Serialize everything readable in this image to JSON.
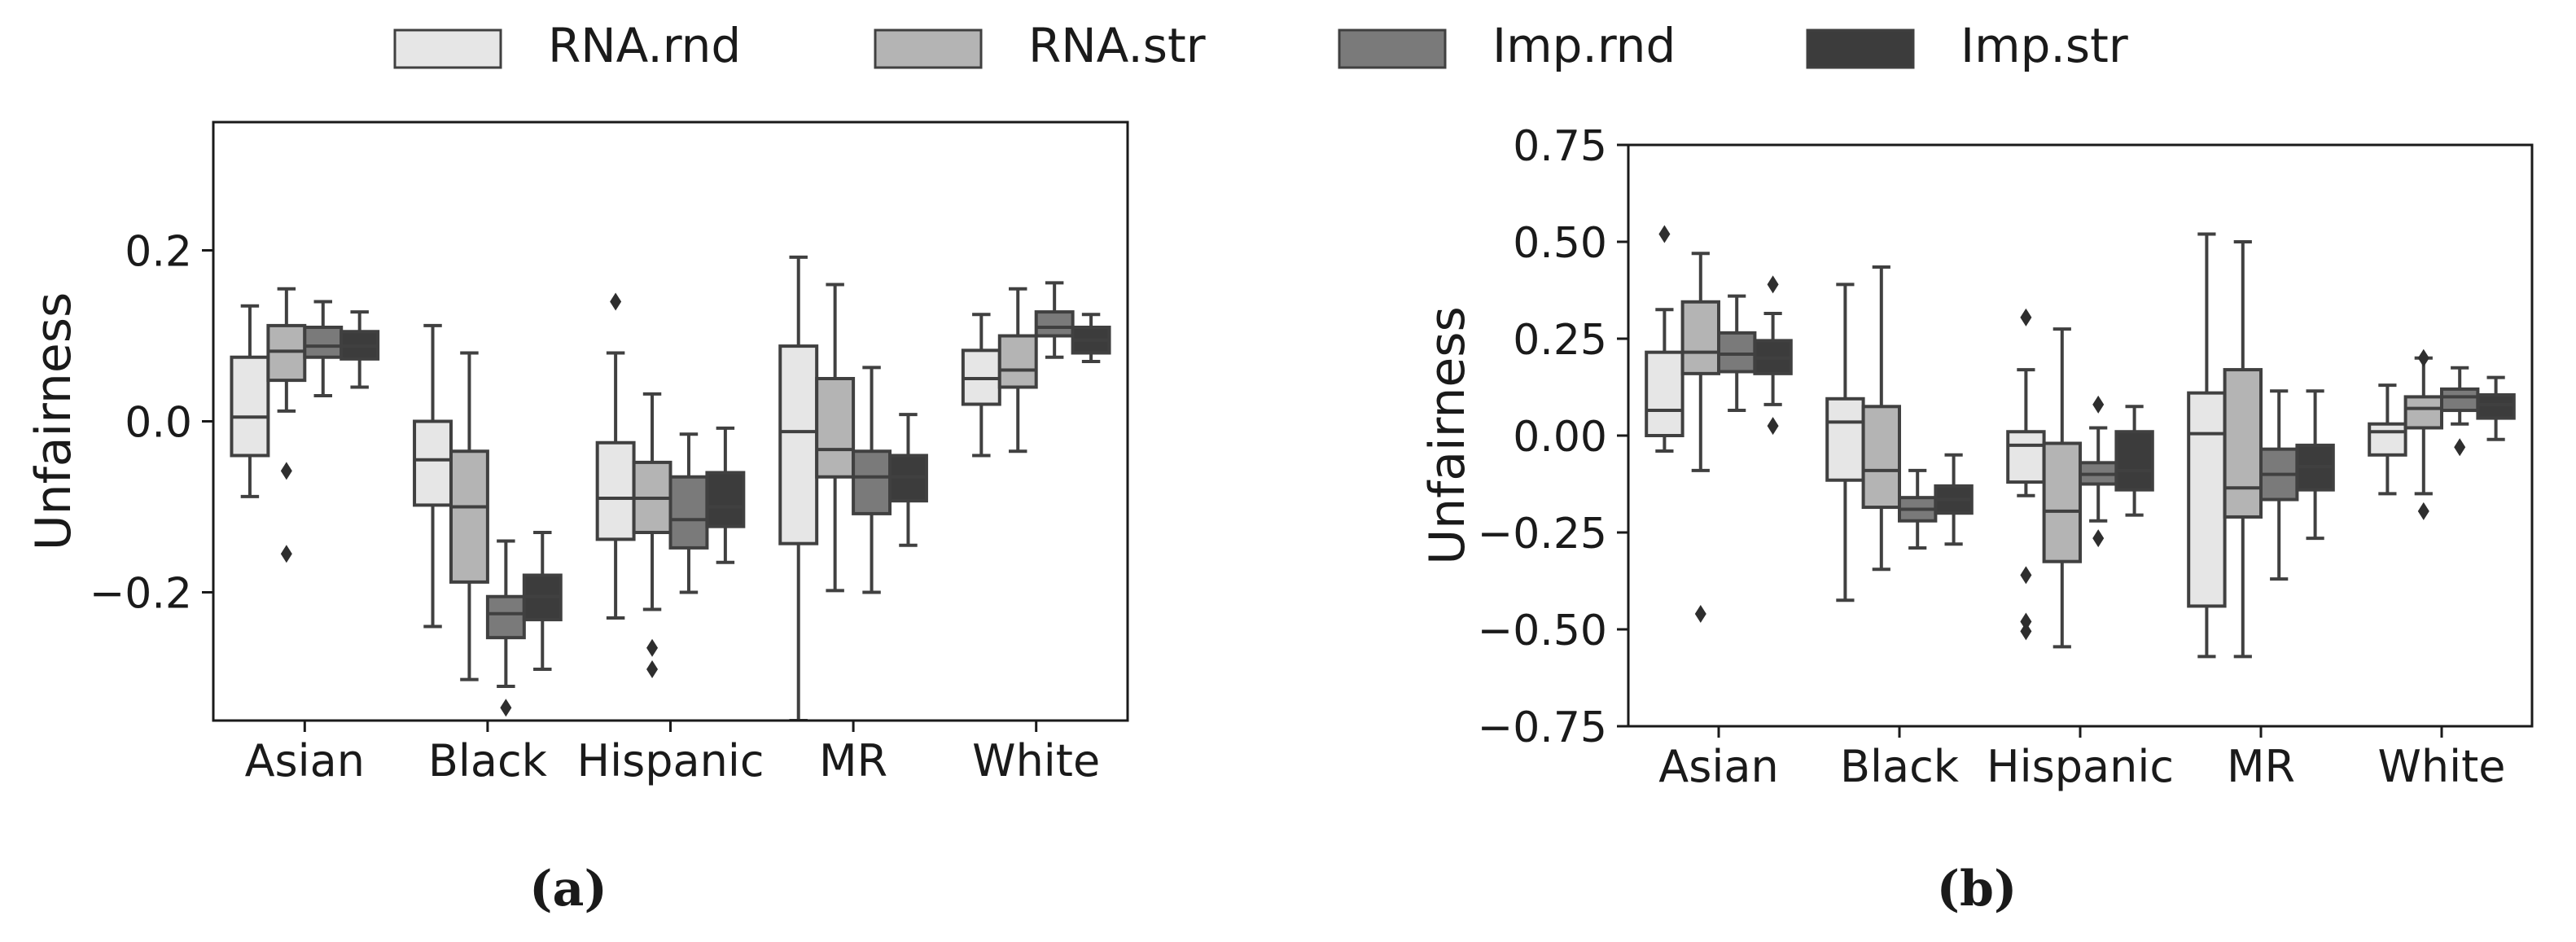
{
  "legend": {
    "placement": "top-center",
    "items": [
      {
        "label": "RNA.rnd",
        "color": "#e6e6e6"
      },
      {
        "label": "RNA.str",
        "color": "#b4b4b4"
      },
      {
        "label": "Imp.rnd",
        "color": "#7a7a7a"
      },
      {
        "label": "Imp.str",
        "color": "#3c3c3c"
      }
    ]
  },
  "edge_color": "#404040",
  "chart_data": [
    {
      "type": "box",
      "caption": "(a)",
      "ylabel": "Unfairness",
      "xlabel": "",
      "ylim": [
        -0.35,
        0.35
      ],
      "yticks": [
        0.2,
        0.0,
        -0.2
      ],
      "ytick_labels": [
        "0.2",
        "0.0",
        "−0.2"
      ],
      "categories": [
        "Asian",
        "Black",
        "Hispanic",
        "MR",
        "White"
      ],
      "series": [
        {
          "name": "RNA.rnd",
          "boxes": [
            {
              "q1": -0.04,
              "median": 0.005,
              "q3": 0.075,
              "wlo": -0.088,
              "whi": 0.135,
              "outliers": []
            },
            {
              "q1": -0.098,
              "median": -0.045,
              "q3": 0.0,
              "wlo": -0.24,
              "whi": 0.112,
              "outliers": []
            },
            {
              "q1": -0.138,
              "median": -0.09,
              "q3": -0.025,
              "wlo": -0.23,
              "whi": 0.08,
              "outliers": [
                0.14
              ]
            },
            {
              "q1": -0.143,
              "median": -0.012,
              "q3": 0.088,
              "wlo": -0.35,
              "whi": 0.192,
              "outliers": []
            },
            {
              "q1": 0.02,
              "median": 0.05,
              "q3": 0.083,
              "wlo": -0.04,
              "whi": 0.125,
              "outliers": []
            }
          ]
        },
        {
          "name": "RNA.str",
          "boxes": [
            {
              "q1": 0.048,
              "median": 0.082,
              "q3": 0.112,
              "wlo": 0.012,
              "whi": 0.155,
              "outliers": [
                -0.058,
                -0.155
              ]
            },
            {
              "q1": -0.188,
              "median": -0.1,
              "q3": -0.035,
              "wlo": -0.302,
              "whi": 0.08,
              "outliers": []
            },
            {
              "q1": -0.13,
              "median": -0.09,
              "q3": -0.048,
              "wlo": -0.22,
              "whi": 0.032,
              "outliers": [
                -0.265,
                -0.29
              ]
            },
            {
              "q1": -0.065,
              "median": -0.033,
              "q3": 0.05,
              "wlo": -0.198,
              "whi": 0.16,
              "outliers": []
            },
            {
              "q1": 0.04,
              "median": 0.06,
              "q3": 0.1,
              "wlo": -0.035,
              "whi": 0.155,
              "outliers": []
            }
          ]
        },
        {
          "name": "Imp.rnd",
          "boxes": [
            {
              "q1": 0.075,
              "median": 0.088,
              "q3": 0.11,
              "wlo": 0.03,
              "whi": 0.14,
              "outliers": []
            },
            {
              "q1": -0.253,
              "median": -0.225,
              "q3": -0.205,
              "wlo": -0.31,
              "whi": -0.14,
              "outliers": [
                -0.335
              ]
            },
            {
              "q1": -0.148,
              "median": -0.115,
              "q3": -0.065,
              "wlo": -0.2,
              "whi": -0.015,
              "outliers": []
            },
            {
              "q1": -0.108,
              "median": -0.065,
              "q3": -0.035,
              "wlo": -0.2,
              "whi": 0.063,
              "outliers": []
            },
            {
              "q1": 0.1,
              "median": 0.11,
              "q3": 0.128,
              "wlo": 0.075,
              "whi": 0.162,
              "outliers": []
            }
          ]
        },
        {
          "name": "Imp.str",
          "boxes": [
            {
              "q1": 0.073,
              "median": 0.088,
              "q3": 0.105,
              "wlo": 0.04,
              "whi": 0.128,
              "outliers": []
            },
            {
              "q1": -0.232,
              "median": -0.205,
              "q3": -0.18,
              "wlo": -0.29,
              "whi": -0.13,
              "outliers": []
            },
            {
              "q1": -0.123,
              "median": -0.1,
              "q3": -0.06,
              "wlo": -0.165,
              "whi": -0.008,
              "outliers": []
            },
            {
              "q1": -0.093,
              "median": -0.065,
              "q3": -0.04,
              "wlo": -0.145,
              "whi": 0.008,
              "outliers": []
            },
            {
              "q1": 0.08,
              "median": 0.095,
              "q3": 0.11,
              "wlo": 0.07,
              "whi": 0.125,
              "outliers": []
            }
          ]
        }
      ]
    },
    {
      "type": "box",
      "caption": "(b)",
      "ylabel": "Unfairness",
      "xlabel": "",
      "ylim": [
        -0.75,
        0.75
      ],
      "yticks": [
        0.75,
        0.5,
        0.25,
        0.0,
        -0.25,
        -0.5,
        -0.75
      ],
      "ytick_labels": [
        "0.75",
        "0.50",
        "0.25",
        "0.00",
        "−0.25",
        "−0.50",
        "−0.75"
      ],
      "categories": [
        "Asian",
        "Black",
        "Hispanic",
        "MR",
        "White"
      ],
      "series": [
        {
          "name": "RNA.rnd",
          "boxes": [
            {
              "q1": 0.0,
              "median": 0.065,
              "q3": 0.215,
              "wlo": -0.04,
              "whi": 0.325,
              "outliers": [
                0.52
              ]
            },
            {
              "q1": -0.115,
              "median": 0.035,
              "q3": 0.095,
              "wlo": -0.425,
              "whi": 0.39,
              "outliers": []
            },
            {
              "q1": -0.12,
              "median": -0.025,
              "q3": 0.01,
              "wlo": -0.155,
              "whi": 0.17,
              "outliers": [
                0.305,
                -0.36,
                -0.48,
                -0.505
              ]
            },
            {
              "q1": -0.44,
              "median": 0.005,
              "q3": 0.11,
              "wlo": -0.57,
              "whi": 0.52,
              "outliers": []
            },
            {
              "q1": -0.05,
              "median": 0.01,
              "q3": 0.03,
              "wlo": -0.15,
              "whi": 0.13,
              "outliers": []
            }
          ]
        },
        {
          "name": "RNA.str",
          "boxes": [
            {
              "q1": 0.16,
              "median": 0.215,
              "q3": 0.345,
              "wlo": -0.09,
              "whi": 0.47,
              "outliers": [
                -0.46
              ]
            },
            {
              "q1": -0.185,
              "median": -0.09,
              "q3": 0.075,
              "wlo": -0.345,
              "whi": 0.435,
              "outliers": []
            },
            {
              "q1": -0.325,
              "median": -0.195,
              "q3": -0.02,
              "wlo": -0.545,
              "whi": 0.275,
              "outliers": []
            },
            {
              "q1": -0.21,
              "median": -0.135,
              "q3": 0.17,
              "wlo": -0.57,
              "whi": 0.5,
              "outliers": []
            },
            {
              "q1": 0.02,
              "median": 0.07,
              "q3": 0.1,
              "wlo": -0.15,
              "whi": 0.2,
              "outliers": [
                0.2,
                -0.195
              ]
            }
          ]
        },
        {
          "name": "Imp.rnd",
          "boxes": [
            {
              "q1": 0.165,
              "median": 0.21,
              "q3": 0.265,
              "wlo": 0.065,
              "whi": 0.36,
              "outliers": []
            },
            {
              "q1": -0.22,
              "median": -0.19,
              "q3": -0.16,
              "wlo": -0.29,
              "whi": -0.09,
              "outliers": []
            },
            {
              "q1": -0.125,
              "median": -0.1,
              "q3": -0.07,
              "wlo": -0.22,
              "whi": 0.02,
              "outliers": [
                0.08,
                -0.265
              ]
            },
            {
              "q1": -0.165,
              "median": -0.1,
              "q3": -0.035,
              "wlo": -0.37,
              "whi": 0.115,
              "outliers": []
            },
            {
              "q1": 0.065,
              "median": 0.1,
              "q3": 0.12,
              "wlo": 0.03,
              "whi": 0.175,
              "outliers": [
                -0.03
              ]
            }
          ]
        },
        {
          "name": "Imp.str",
          "boxes": [
            {
              "q1": 0.16,
              "median": 0.2,
              "q3": 0.245,
              "wlo": 0.08,
              "whi": 0.315,
              "outliers": [
                0.39,
                0.025
              ]
            },
            {
              "q1": -0.2,
              "median": -0.165,
              "q3": -0.13,
              "wlo": -0.28,
              "whi": -0.05,
              "outliers": []
            },
            {
              "q1": -0.14,
              "median": -0.09,
              "q3": 0.01,
              "wlo": -0.205,
              "whi": 0.075,
              "outliers": []
            },
            {
              "q1": -0.14,
              "median": -0.08,
              "q3": -0.025,
              "wlo": -0.265,
              "whi": 0.115,
              "outliers": []
            },
            {
              "q1": 0.045,
              "median": 0.08,
              "q3": 0.105,
              "wlo": -0.01,
              "whi": 0.15,
              "outliers": []
            }
          ]
        }
      ]
    }
  ]
}
